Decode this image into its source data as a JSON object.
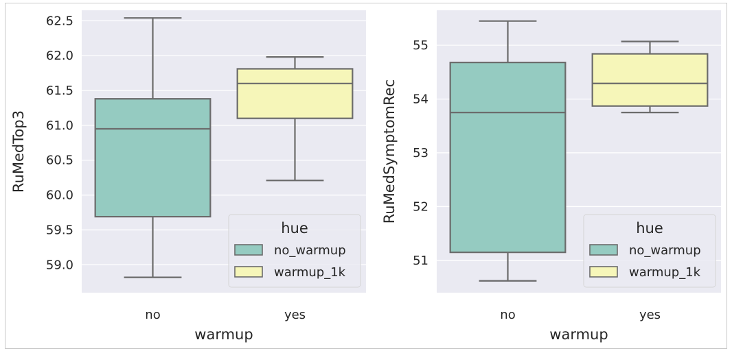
{
  "chart_data": [
    {
      "type": "box",
      "title": "",
      "xlabel": "warmup",
      "ylabel": "RuMedTop3",
      "categories": [
        "no",
        "yes"
      ],
      "yticks": [
        "59.0",
        "59.5",
        "60.0",
        "60.5",
        "61.0",
        "61.5",
        "62.0",
        "62.5"
      ],
      "ylim": [
        58.6,
        62.65
      ],
      "grid": true,
      "legend": {
        "title": "hue",
        "location": "bottom-right",
        "entries": [
          "no_warmup",
          "warmup_1k"
        ]
      },
      "series": [
        {
          "name": "no_warmup",
          "category": "no",
          "color": "#95cbc1",
          "min": 58.82,
          "q1": 59.69,
          "median": 60.95,
          "q3": 61.38,
          "max": 62.54
        },
        {
          "name": "warmup_1k",
          "category": "yes",
          "color": "#f6f6b9",
          "min": 60.21,
          "q1": 61.1,
          "median": 61.6,
          "q3": 61.81,
          "max": 61.98
        }
      ]
    },
    {
      "type": "box",
      "title": "",
      "xlabel": "warmup",
      "ylabel": "RuMedSymptomRec",
      "categories": [
        "no",
        "yes"
      ],
      "yticks": [
        "51",
        "52",
        "53",
        "54",
        "55"
      ],
      "ylim": [
        50.4,
        55.65
      ],
      "grid": true,
      "legend": {
        "title": "hue",
        "location": "bottom-right",
        "entries": [
          "no_warmup",
          "warmup_1k"
        ]
      },
      "series": [
        {
          "name": "no_warmup",
          "category": "no",
          "color": "#95cbc1",
          "min": 50.62,
          "q1": 51.15,
          "median": 53.75,
          "q3": 54.68,
          "max": 55.45
        },
        {
          "name": "warmup_1k",
          "category": "yes",
          "color": "#f6f6b9",
          "min": 53.75,
          "q1": 53.87,
          "median": 54.29,
          "q3": 54.84,
          "max": 55.07
        }
      ]
    }
  ]
}
